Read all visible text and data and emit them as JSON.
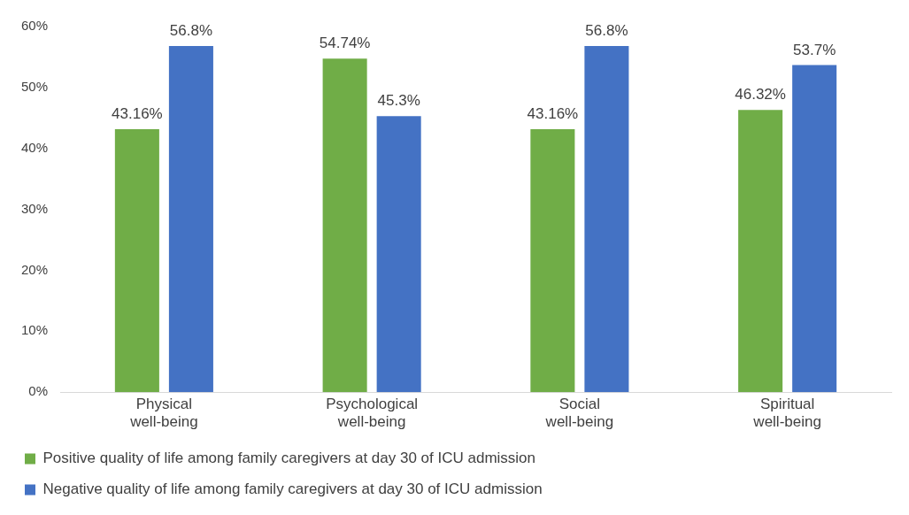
{
  "chart_data": {
    "type": "bar",
    "categories": [
      "Physical well-being",
      "Psychological well-being",
      "Social well-being",
      "Spiritual well-being"
    ],
    "series": [
      {
        "name": "Positive quality of life among family caregivers at day 30 of ICU admission",
        "color": "#70ad47",
        "values": [
          43.16,
          54.74,
          43.16,
          46.32
        ],
        "value_labels": [
          "43.16%",
          "54.74%",
          "43.16%",
          "46.32%"
        ]
      },
      {
        "name": "Negative quality of life among family caregivers at day 30 of ICU admission",
        "color": "#4472c4",
        "values": [
          56.8,
          45.3,
          56.8,
          53.7
        ],
        "value_labels": [
          "56.8%",
          "45.3%",
          "56.8%",
          "53.7%"
        ]
      }
    ],
    "ylim": [
      0,
      60
    ],
    "yticks": [
      {
        "value": 0,
        "label": "0%"
      },
      {
        "value": 10,
        "label": "10%"
      },
      {
        "value": 20,
        "label": "20%"
      },
      {
        "value": 30,
        "label": "30%"
      },
      {
        "value": 40,
        "label": "40%"
      },
      {
        "value": 50,
        "label": "50%"
      },
      {
        "value": 60,
        "label": "60%"
      }
    ],
    "grid": false,
    "legend": "bottom"
  }
}
